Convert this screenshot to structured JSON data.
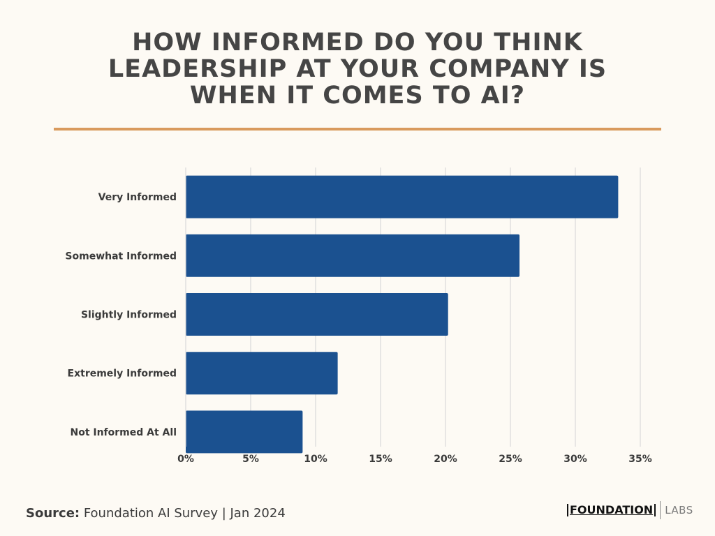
{
  "title_lines": [
    "HOW INFORMED DO YOU THINK",
    "LEADERSHIP AT YOUR COMPANY IS",
    "WHEN IT COMES TO AI?"
  ],
  "source": {
    "label": "Source:",
    "text": " Foundation AI Survey | Jan 2024"
  },
  "logo": {
    "word": "FOUNDATION",
    "sub": "LABS"
  },
  "colors": {
    "background": "#fdfaf4",
    "bar": "#1b5190",
    "accent": "#d99a5d",
    "grid": "#d9d9d9",
    "text": "#454545"
  },
  "chart_data": {
    "type": "bar",
    "orientation": "horizontal",
    "categories": [
      "Very Informed",
      "Somewhat Informed",
      "Slightly Informed",
      "Extremely Informed",
      "Not Informed At All"
    ],
    "values": [
      33.3,
      25.7,
      20.2,
      11.7,
      9.0
    ],
    "xlim": [
      0,
      35
    ],
    "xticks": [
      0,
      5,
      10,
      15,
      20,
      25,
      30,
      35
    ],
    "xtick_labels": [
      "0%",
      "5%",
      "10%",
      "15%",
      "20%",
      "25%",
      "30%",
      "35%"
    ],
    "grid": true,
    "legend": "none"
  }
}
